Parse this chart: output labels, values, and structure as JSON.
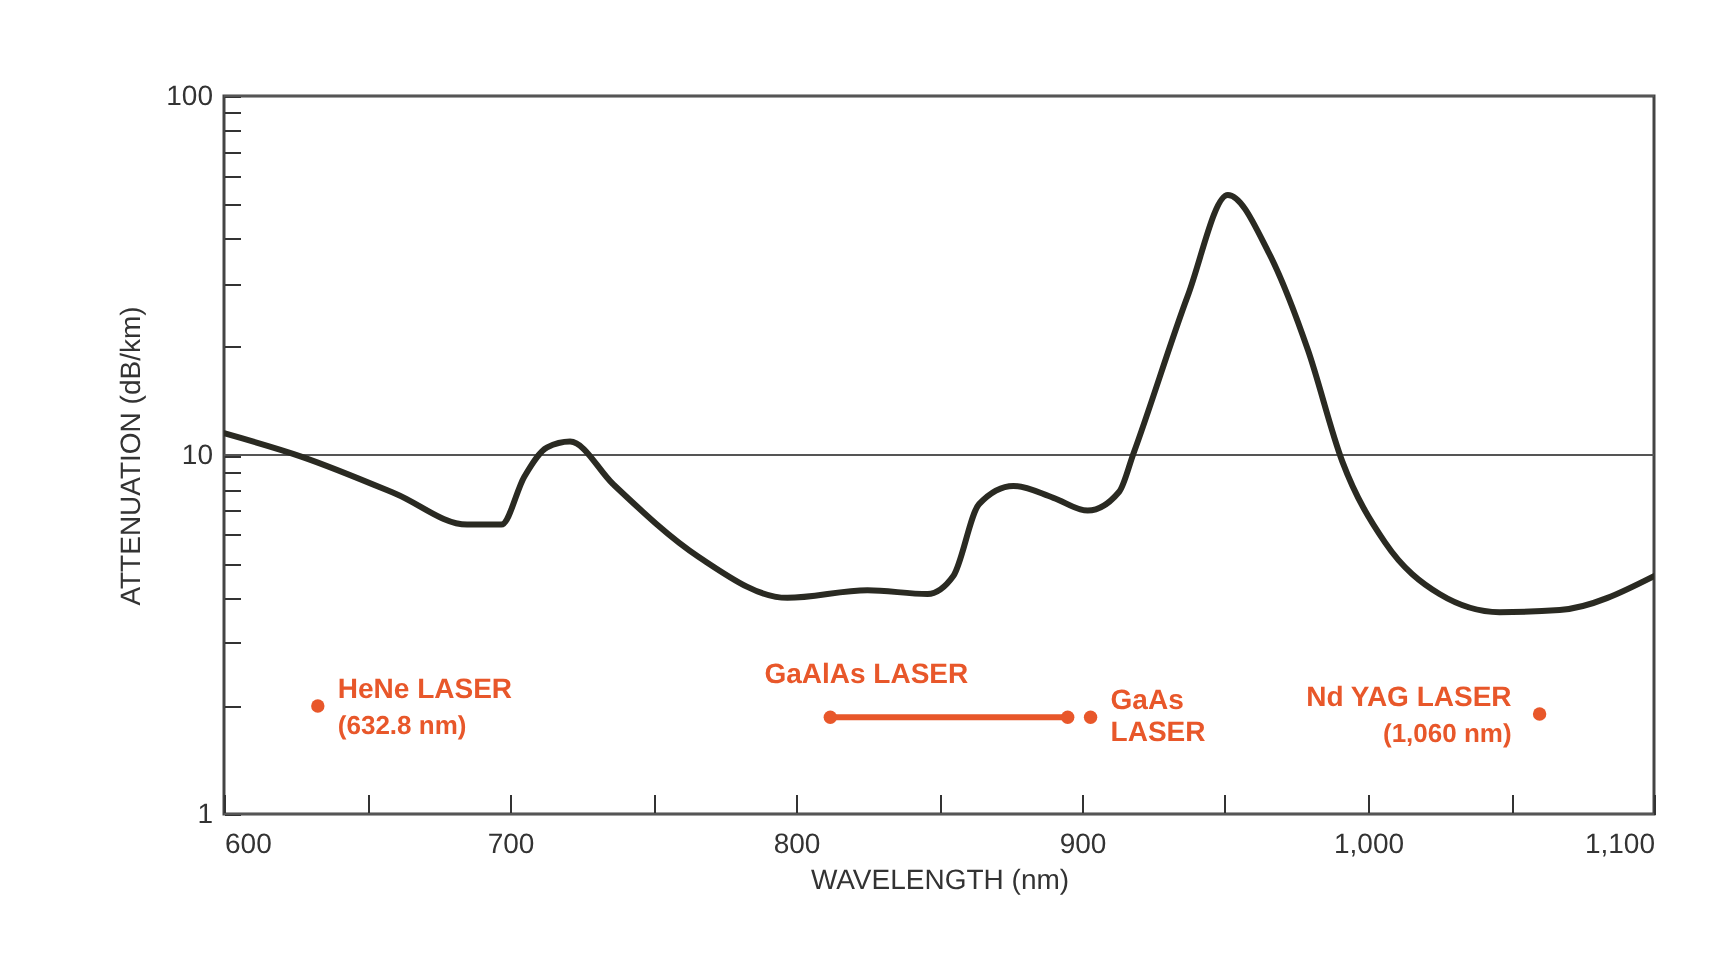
{
  "chart_data": {
    "type": "line",
    "xlabel": "WAVELENGTH (nm)",
    "ylabel": "ATTENUATION (dB/km)",
    "log": "y",
    "grid": "y",
    "xlim": [
      600,
      1100
    ],
    "ylim": [
      1,
      100
    ],
    "xticks": [
      600,
      {
        "value": 650,
        "label": null
      },
      700,
      {
        "value": 750,
        "label": null
      },
      800,
      {
        "value": 850,
        "label": null
      },
      900,
      {
        "value": 950,
        "label": null
      },
      {
        "value": 1000,
        "label": "1,000"
      },
      {
        "value": 1050,
        "label": null
      },
      {
        "value": 1100,
        "label": "1,100"
      }
    ],
    "yticks": [
      1,
      {
        "value": 2,
        "label": null
      },
      {
        "value": 3,
        "label": null
      },
      {
        "value": 4,
        "label": null
      },
      {
        "value": 5,
        "label": null
      },
      {
        "value": 6,
        "label": null
      },
      {
        "value": 7,
        "label": null
      },
      {
        "value": 8,
        "label": null
      },
      {
        "value": 9,
        "label": null
      },
      10,
      {
        "value": 20,
        "label": null
      },
      {
        "value": 30,
        "label": null
      },
      {
        "value": 40,
        "label": null
      },
      {
        "value": 50,
        "label": null
      },
      {
        "value": 60,
        "label": null
      },
      {
        "value": 70,
        "label": null
      },
      {
        "value": 80,
        "label": null
      },
      {
        "value": 90,
        "label": null
      },
      100
    ],
    "series": [
      {
        "color": "#2a2a22",
        "marker": "none",
        "line_style": "solid",
        "x": [
          600,
          627,
          660,
          685,
          697,
          705,
          713,
          721,
          736,
          766,
          797,
          825,
          846,
          855,
          864,
          876,
          890,
          902,
          913,
          918,
          937,
          951,
          965,
          979,
          991,
          1006,
          1025,
          1046,
          1067,
          1100
        ],
        "values": [
          11.5,
          9.9,
          7.8,
          6.4,
          6.4,
          8.7,
          10.5,
          10.9,
          8.3,
          5.2,
          4.0,
          4.2,
          4.1,
          4.6,
          7.3,
          8.2,
          7.6,
          7.0,
          7.9,
          10.1,
          27.8,
          53,
          37,
          19.6,
          9.6,
          5.7,
          4.1,
          3.65,
          3.7,
          4.6
        ]
      },
      {
        "type": "scatter",
        "name": "HeNe LASER",
        "color": "#e8572a",
        "marker": "circle",
        "x": [
          632.8
        ],
        "values": [
          2.0
        ]
      },
      {
        "type": "line",
        "name": "GaAlAs LASER",
        "color": "#e8572a",
        "marker": "circle",
        "line_style": "solid",
        "x": [
          812,
          895
        ],
        "values": [
          1.86,
          1.86
        ]
      },
      {
        "type": "scatter",
        "name": "GaAs LASER",
        "color": "#e8572a",
        "marker": "circle",
        "x": [
          903
        ],
        "values": [
          1.86
        ]
      },
      {
        "type": "scatter",
        "name": "Nd YAG LASER",
        "color": "#e8572a",
        "marker": "circle",
        "x": [
          1060
        ],
        "values": [
          1.9
        ]
      }
    ],
    "annotations": [
      {
        "text": "(632.8 nm)",
        "x": 632.8,
        "y": 2.0
      },
      {
        "text": "(1,060 nm)",
        "x": 1060,
        "y": 1.9
      }
    ]
  }
}
